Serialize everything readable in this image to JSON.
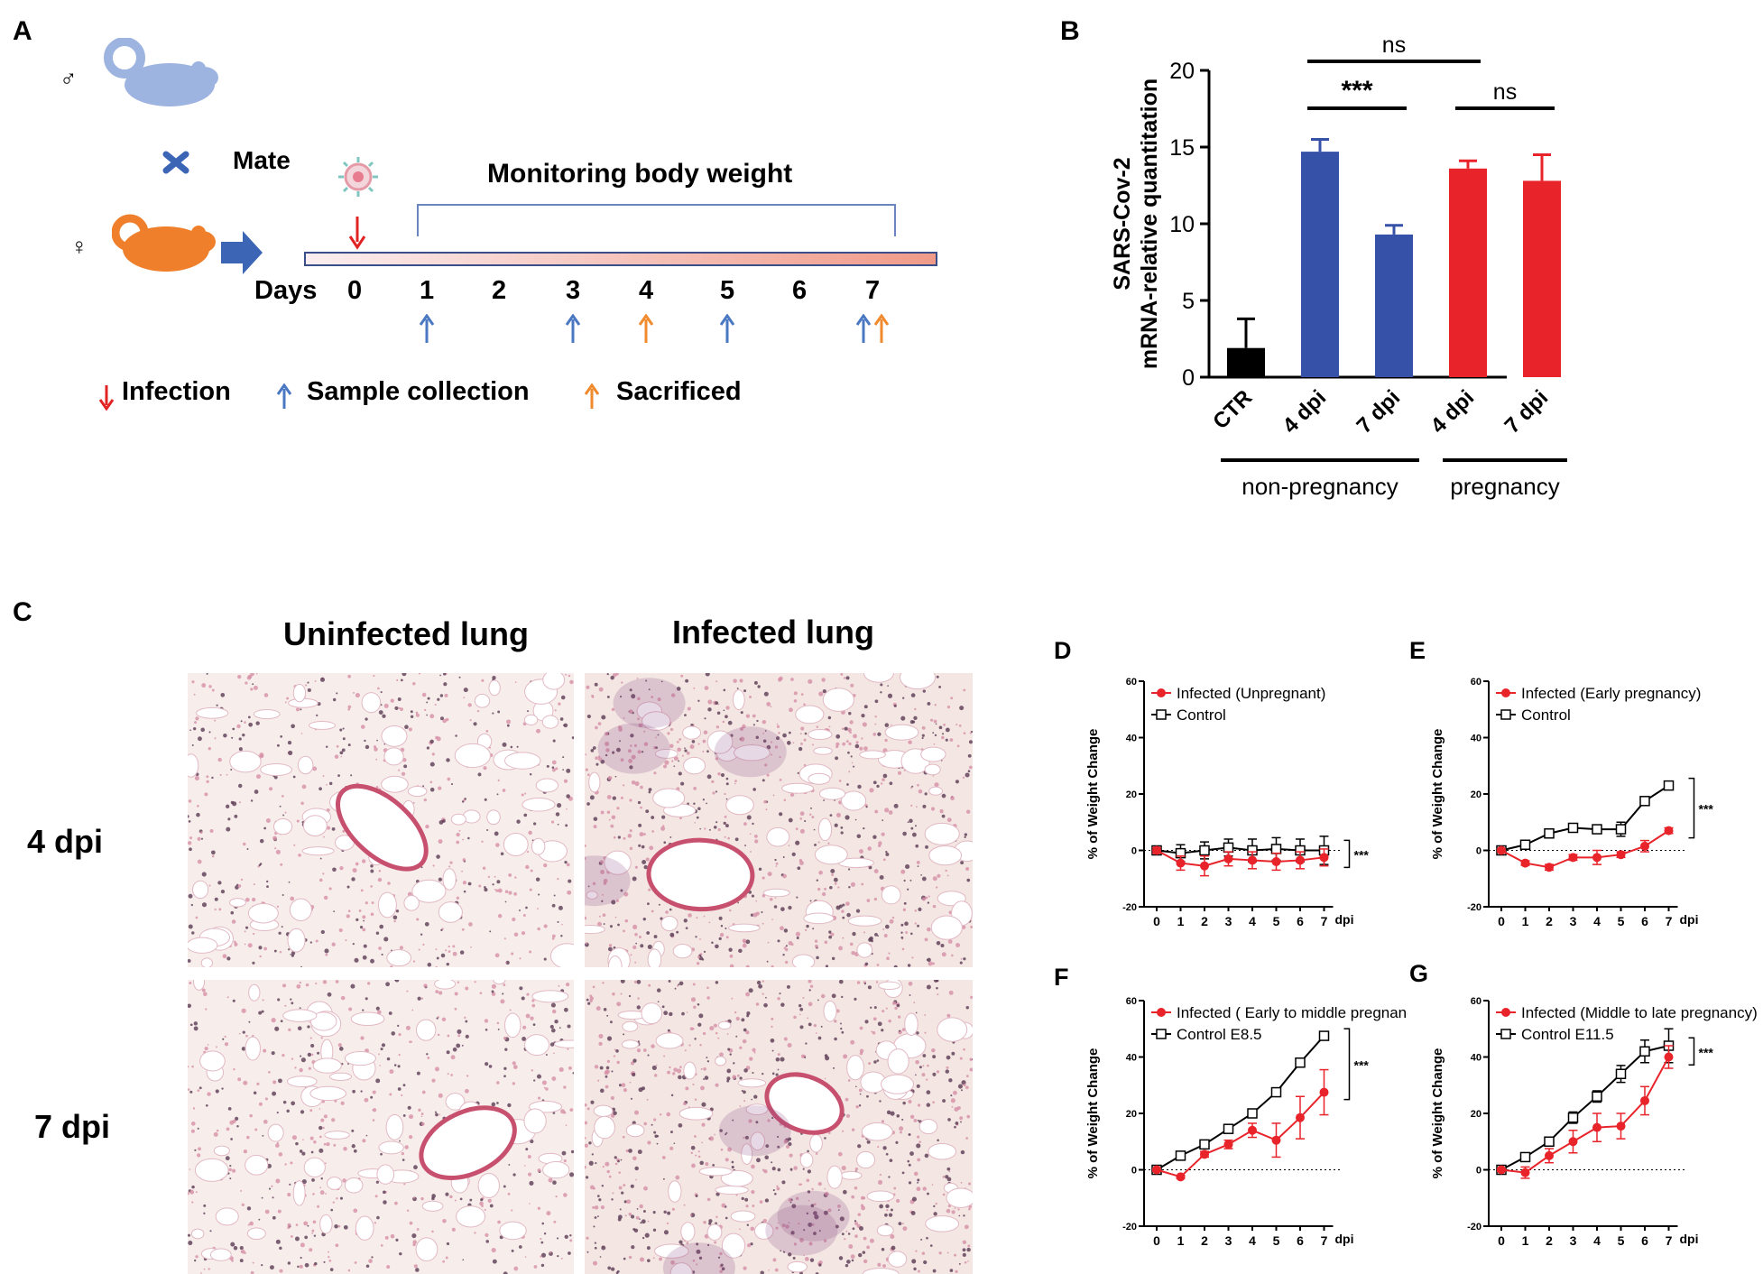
{
  "panels": {
    "A": {
      "letter": "A",
      "male_symbol": "♂",
      "female_symbol": "♀",
      "mate_label": "Mate",
      "monitoring_label": "Monitoring body weight",
      "days_label": "Days",
      "days": [
        "0",
        "1",
        "2",
        "3",
        "4",
        "5",
        "6",
        "7"
      ],
      "legend": {
        "infection": "Infection",
        "sample_collection": "Sample collection",
        "sacrificed": "Sacrificed"
      },
      "colors": {
        "infection": "#e02424",
        "sample": "#4a78c2",
        "sacrificed": "#f08a2c",
        "male_mouse": "#9db3e0",
        "female_mouse": "#ef7f2a",
        "arrow": "#3c66b5"
      }
    },
    "B": {
      "letter": "B"
    },
    "C": {
      "letter": "C",
      "col_headers": [
        "Uninfected lung",
        "Infected lung"
      ],
      "row_labels": [
        "4 dpi",
        "7 dpi"
      ]
    },
    "D": {
      "letter": "D"
    },
    "E": {
      "letter": "E"
    },
    "F": {
      "letter": "F"
    },
    "G": {
      "letter": "G"
    }
  },
  "chart_data": [
    {
      "panel": "B",
      "type": "bar",
      "ylabel": "SARS-Cov-2\nmRNA-relative quantitation",
      "ylim": [
        0,
        20
      ],
      "yticks": [
        "0",
        "5",
        "10",
        "15",
        "20"
      ],
      "categories": [
        "CTR",
        "4 dpi",
        "7 dpi",
        "4 dpi",
        "7 dpi"
      ],
      "values": [
        1.9,
        14.7,
        9.3,
        13.6,
        12.8
      ],
      "errors": [
        1.9,
        0.8,
        0.6,
        0.5,
        1.7
      ],
      "bar_colors": [
        "#000000",
        "#3651a8",
        "#3651a8",
        "#e8232a",
        "#e8232a"
      ],
      "groups": [
        {
          "label": "non-pregnancy",
          "from": 0,
          "to": 2
        },
        {
          "label": "pregnancy",
          "from": 3,
          "to": 4
        }
      ],
      "significance": [
        {
          "from": 1,
          "to": 3,
          "label": "ns"
        },
        {
          "from": 1,
          "to": 2,
          "label": "***"
        },
        {
          "from": 3,
          "to": 4,
          "label": "ns"
        }
      ]
    },
    {
      "panel": "D",
      "type": "line",
      "ylabel": "% of Weight Change",
      "xlabel": "dpi",
      "x": [
        0,
        1,
        2,
        3,
        4,
        5,
        6,
        7
      ],
      "ylim": [
        -20,
        60
      ],
      "yticks": [
        "-20",
        "0",
        "20",
        "40",
        "60"
      ],
      "series": [
        {
          "name": "Infected (Unpregnant)",
          "color": "#e8232a",
          "marker": "circle",
          "values": [
            0,
            -4.5,
            -5.5,
            -3,
            -3.5,
            -4,
            -3.5,
            -2.5
          ],
          "errors": [
            1,
            2.5,
            3.5,
            2.5,
            3,
            3,
            3,
            3
          ]
        },
        {
          "name": "Control",
          "color": "#000000",
          "marker": "square",
          "values": [
            0,
            -1,
            0,
            1,
            0,
            0.5,
            0,
            0
          ],
          "errors": [
            1,
            3,
            3,
            3,
            4,
            4,
            4,
            5
          ]
        }
      ],
      "significance": "***"
    },
    {
      "panel": "E",
      "type": "line",
      "ylabel": "% of Weight Change",
      "xlabel": "dpi",
      "x": [
        0,
        1,
        2,
        3,
        4,
        5,
        6,
        7
      ],
      "ylim": [
        -20,
        60
      ],
      "yticks": [
        "-20",
        "0",
        "20",
        "40",
        "60"
      ],
      "series": [
        {
          "name": "Infected (Early pregnancy)",
          "color": "#e8232a",
          "marker": "circle",
          "values": [
            0,
            -4.5,
            -6,
            -2.5,
            -2.5,
            -1.5,
            1.5,
            7
          ],
          "errors": [
            0.5,
            0.8,
            1,
            1,
            2.5,
            1,
            2,
            1
          ]
        },
        {
          "name": "Control",
          "color": "#000000",
          "marker": "square",
          "values": [
            0,
            2,
            6,
            8,
            7.5,
            7.5,
            17.5,
            23
          ],
          "errors": [
            0.5,
            0.8,
            1,
            1,
            1.5,
            2.5,
            1.5,
            1.5
          ]
        }
      ],
      "significance": "***"
    },
    {
      "panel": "F",
      "type": "line",
      "ylabel": "% of Weight Change",
      "xlabel": "dpi",
      "x": [
        0,
        1,
        2,
        3,
        4,
        5,
        6,
        7
      ],
      "ylim": [
        -20,
        60
      ],
      "yticks": [
        "-20",
        "0",
        "20",
        "40",
        "60"
      ],
      "series": [
        {
          "name": "Infected ( Early to middle pregnancy)",
          "color": "#e8232a",
          "marker": "circle",
          "values": [
            0,
            -2.5,
            5.5,
            9,
            14,
            10.5,
            18.5,
            27.5
          ],
          "errors": [
            0.5,
            0.5,
            1,
            1.5,
            2.5,
            6,
            7.5,
            8
          ]
        },
        {
          "name": "Control E8.5",
          "color": "#000000",
          "marker": "square",
          "values": [
            0,
            5,
            9,
            14.5,
            20,
            27.5,
            38,
            47.5
          ],
          "errors": [
            0.5,
            1,
            1,
            1,
            1,
            1,
            1,
            1
          ]
        }
      ],
      "significance": "***"
    },
    {
      "panel": "G",
      "type": "line",
      "ylabel": "% of Weight Change",
      "xlabel": "dpi",
      "x": [
        0,
        1,
        2,
        3,
        4,
        5,
        6,
        7
      ],
      "ylim": [
        -20,
        60
      ],
      "yticks": [
        "-20",
        "0",
        "20",
        "40",
        "60"
      ],
      "series": [
        {
          "name": "Infected (Middle to late pregnancy)",
          "color": "#e8232a",
          "marker": "circle",
          "values": [
            0,
            -1,
            5,
            10,
            15,
            15.5,
            24.5,
            40
          ],
          "errors": [
            0.5,
            2,
            2.5,
            4,
            5,
            4.5,
            5,
            4
          ]
        },
        {
          "name": "Control E11.5",
          "color": "#000000",
          "marker": "square",
          "values": [
            0,
            4.5,
            10,
            18.5,
            26,
            34,
            42,
            44
          ],
          "errors": [
            0.5,
            1,
            1,
            2,
            2,
            3,
            4,
            6
          ]
        }
      ],
      "significance": "***"
    }
  ]
}
